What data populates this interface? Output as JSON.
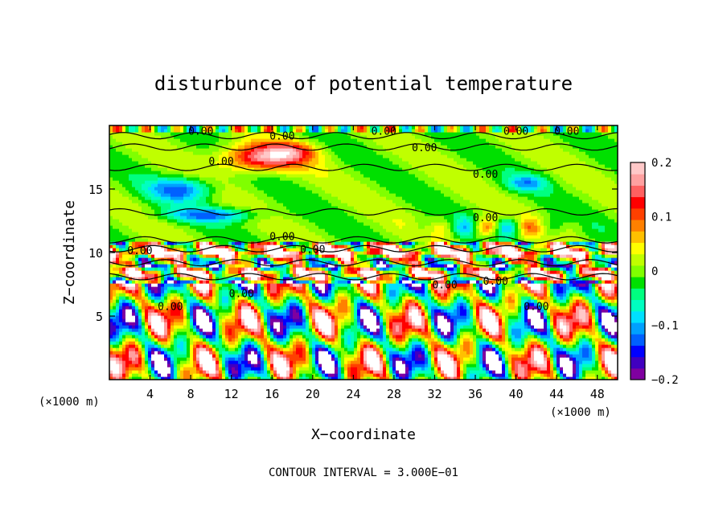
{
  "chart_data": {
    "type": "heatmap",
    "title": "disturbunce of potential temperature",
    "xlabel": "X−coordinate",
    "ylabel": "Z−coordinate",
    "x_unit": "(×1000 m)",
    "xlim": [
      0,
      50
    ],
    "ylim": [
      0,
      20
    ],
    "x_ticks": [
      4,
      8,
      12,
      16,
      20,
      24,
      28,
      32,
      36,
      40,
      44,
      48
    ],
    "y_ticks": [
      5,
      10,
      15
    ],
    "colorbar": {
      "range": [
        -0.2,
        0.2
      ],
      "tick_values": [
        0.2,
        0.1,
        0,
        -0.1,
        -0.2
      ],
      "tick_labels": [
        "0.2",
        "0.1",
        "0",
        "−0.1",
        "−0.2"
      ],
      "colors": [
        "#7f00a0",
        "#4000c0",
        "#0000ff",
        "#0060ff",
        "#00a0ff",
        "#00e0ff",
        "#00ffc0",
        "#00ff80",
        "#00e000",
        "#80ff00",
        "#c0ff00",
        "#ffff00",
        "#ffc000",
        "#ff8000",
        "#ff4000",
        "#ff0000",
        "#ff6060",
        "#ffa0a0",
        "#ffc8c8"
      ]
    },
    "contour_labels": [
      "0.00"
    ],
    "contour_interval_text": "CONTOUR INTERVAL = 3.000E−01",
    "grid": false
  }
}
